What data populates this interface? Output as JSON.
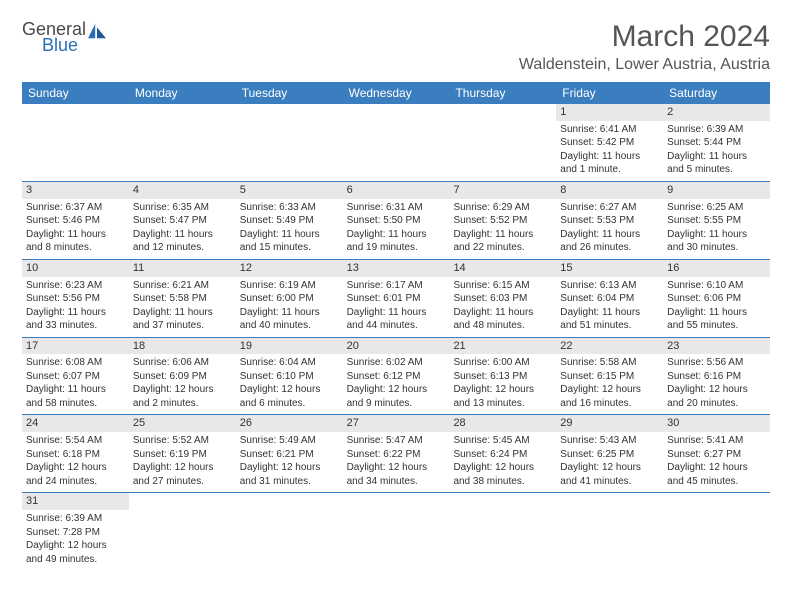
{
  "brand": {
    "name_top": "General",
    "name_bottom": "Blue"
  },
  "title": "March 2024",
  "location": "Waldenstein, Lower Austria, Austria",
  "colors": {
    "header_bg": "#3a7ebf",
    "header_text": "#ffffff",
    "date_bg": "#e8e8e8",
    "week_border": "#3a7ebf",
    "brand_blue": "#2a6fb5",
    "text": "#333333"
  },
  "day_names": [
    "Sunday",
    "Monday",
    "Tuesday",
    "Wednesday",
    "Thursday",
    "Friday",
    "Saturday"
  ],
  "weeks": [
    [
      {
        "date": "",
        "sunrise": "",
        "sunset": "",
        "daylight": ""
      },
      {
        "date": "",
        "sunrise": "",
        "sunset": "",
        "daylight": ""
      },
      {
        "date": "",
        "sunrise": "",
        "sunset": "",
        "daylight": ""
      },
      {
        "date": "",
        "sunrise": "",
        "sunset": "",
        "daylight": ""
      },
      {
        "date": "",
        "sunrise": "",
        "sunset": "",
        "daylight": ""
      },
      {
        "date": "1",
        "sunrise": "Sunrise: 6:41 AM",
        "sunset": "Sunset: 5:42 PM",
        "daylight": "Daylight: 11 hours and 1 minute."
      },
      {
        "date": "2",
        "sunrise": "Sunrise: 6:39 AM",
        "sunset": "Sunset: 5:44 PM",
        "daylight": "Daylight: 11 hours and 5 minutes."
      }
    ],
    [
      {
        "date": "3",
        "sunrise": "Sunrise: 6:37 AM",
        "sunset": "Sunset: 5:46 PM",
        "daylight": "Daylight: 11 hours and 8 minutes."
      },
      {
        "date": "4",
        "sunrise": "Sunrise: 6:35 AM",
        "sunset": "Sunset: 5:47 PM",
        "daylight": "Daylight: 11 hours and 12 minutes."
      },
      {
        "date": "5",
        "sunrise": "Sunrise: 6:33 AM",
        "sunset": "Sunset: 5:49 PM",
        "daylight": "Daylight: 11 hours and 15 minutes."
      },
      {
        "date": "6",
        "sunrise": "Sunrise: 6:31 AM",
        "sunset": "Sunset: 5:50 PM",
        "daylight": "Daylight: 11 hours and 19 minutes."
      },
      {
        "date": "7",
        "sunrise": "Sunrise: 6:29 AM",
        "sunset": "Sunset: 5:52 PM",
        "daylight": "Daylight: 11 hours and 22 minutes."
      },
      {
        "date": "8",
        "sunrise": "Sunrise: 6:27 AM",
        "sunset": "Sunset: 5:53 PM",
        "daylight": "Daylight: 11 hours and 26 minutes."
      },
      {
        "date": "9",
        "sunrise": "Sunrise: 6:25 AM",
        "sunset": "Sunset: 5:55 PM",
        "daylight": "Daylight: 11 hours and 30 minutes."
      }
    ],
    [
      {
        "date": "10",
        "sunrise": "Sunrise: 6:23 AM",
        "sunset": "Sunset: 5:56 PM",
        "daylight": "Daylight: 11 hours and 33 minutes."
      },
      {
        "date": "11",
        "sunrise": "Sunrise: 6:21 AM",
        "sunset": "Sunset: 5:58 PM",
        "daylight": "Daylight: 11 hours and 37 minutes."
      },
      {
        "date": "12",
        "sunrise": "Sunrise: 6:19 AM",
        "sunset": "Sunset: 6:00 PM",
        "daylight": "Daylight: 11 hours and 40 minutes."
      },
      {
        "date": "13",
        "sunrise": "Sunrise: 6:17 AM",
        "sunset": "Sunset: 6:01 PM",
        "daylight": "Daylight: 11 hours and 44 minutes."
      },
      {
        "date": "14",
        "sunrise": "Sunrise: 6:15 AM",
        "sunset": "Sunset: 6:03 PM",
        "daylight": "Daylight: 11 hours and 48 minutes."
      },
      {
        "date": "15",
        "sunrise": "Sunrise: 6:13 AM",
        "sunset": "Sunset: 6:04 PM",
        "daylight": "Daylight: 11 hours and 51 minutes."
      },
      {
        "date": "16",
        "sunrise": "Sunrise: 6:10 AM",
        "sunset": "Sunset: 6:06 PM",
        "daylight": "Daylight: 11 hours and 55 minutes."
      }
    ],
    [
      {
        "date": "17",
        "sunrise": "Sunrise: 6:08 AM",
        "sunset": "Sunset: 6:07 PM",
        "daylight": "Daylight: 11 hours and 58 minutes."
      },
      {
        "date": "18",
        "sunrise": "Sunrise: 6:06 AM",
        "sunset": "Sunset: 6:09 PM",
        "daylight": "Daylight: 12 hours and 2 minutes."
      },
      {
        "date": "19",
        "sunrise": "Sunrise: 6:04 AM",
        "sunset": "Sunset: 6:10 PM",
        "daylight": "Daylight: 12 hours and 6 minutes."
      },
      {
        "date": "20",
        "sunrise": "Sunrise: 6:02 AM",
        "sunset": "Sunset: 6:12 PM",
        "daylight": "Daylight: 12 hours and 9 minutes."
      },
      {
        "date": "21",
        "sunrise": "Sunrise: 6:00 AM",
        "sunset": "Sunset: 6:13 PM",
        "daylight": "Daylight: 12 hours and 13 minutes."
      },
      {
        "date": "22",
        "sunrise": "Sunrise: 5:58 AM",
        "sunset": "Sunset: 6:15 PM",
        "daylight": "Daylight: 12 hours and 16 minutes."
      },
      {
        "date": "23",
        "sunrise": "Sunrise: 5:56 AM",
        "sunset": "Sunset: 6:16 PM",
        "daylight": "Daylight: 12 hours and 20 minutes."
      }
    ],
    [
      {
        "date": "24",
        "sunrise": "Sunrise: 5:54 AM",
        "sunset": "Sunset: 6:18 PM",
        "daylight": "Daylight: 12 hours and 24 minutes."
      },
      {
        "date": "25",
        "sunrise": "Sunrise: 5:52 AM",
        "sunset": "Sunset: 6:19 PM",
        "daylight": "Daylight: 12 hours and 27 minutes."
      },
      {
        "date": "26",
        "sunrise": "Sunrise: 5:49 AM",
        "sunset": "Sunset: 6:21 PM",
        "daylight": "Daylight: 12 hours and 31 minutes."
      },
      {
        "date": "27",
        "sunrise": "Sunrise: 5:47 AM",
        "sunset": "Sunset: 6:22 PM",
        "daylight": "Daylight: 12 hours and 34 minutes."
      },
      {
        "date": "28",
        "sunrise": "Sunrise: 5:45 AM",
        "sunset": "Sunset: 6:24 PM",
        "daylight": "Daylight: 12 hours and 38 minutes."
      },
      {
        "date": "29",
        "sunrise": "Sunrise: 5:43 AM",
        "sunset": "Sunset: 6:25 PM",
        "daylight": "Daylight: 12 hours and 41 minutes."
      },
      {
        "date": "30",
        "sunrise": "Sunrise: 5:41 AM",
        "sunset": "Sunset: 6:27 PM",
        "daylight": "Daylight: 12 hours and 45 minutes."
      }
    ],
    [
      {
        "date": "31",
        "sunrise": "Sunrise: 6:39 AM",
        "sunset": "Sunset: 7:28 PM",
        "daylight": "Daylight: 12 hours and 49 minutes."
      },
      {
        "date": "",
        "sunrise": "",
        "sunset": "",
        "daylight": ""
      },
      {
        "date": "",
        "sunrise": "",
        "sunset": "",
        "daylight": ""
      },
      {
        "date": "",
        "sunrise": "",
        "sunset": "",
        "daylight": ""
      },
      {
        "date": "",
        "sunrise": "",
        "sunset": "",
        "daylight": ""
      },
      {
        "date": "",
        "sunrise": "",
        "sunset": "",
        "daylight": ""
      },
      {
        "date": "",
        "sunrise": "",
        "sunset": "",
        "daylight": ""
      }
    ]
  ]
}
